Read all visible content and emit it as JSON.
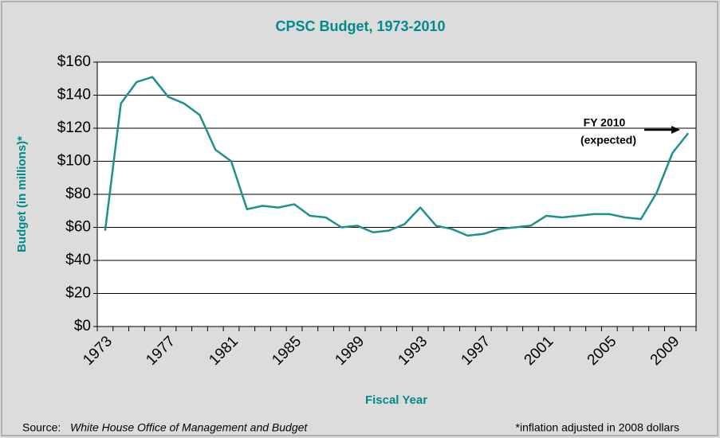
{
  "chart_data": {
    "type": "line",
    "title": "CPSC Budget, 1973-2010",
    "x_label": "Fiscal Year",
    "y_label": "Budget (in millions)*",
    "categories": [
      "1973",
      null,
      null,
      null,
      "1977",
      null,
      null,
      null,
      "1981",
      null,
      null,
      null,
      "1985",
      null,
      null,
      null,
      "1989",
      null,
      null,
      null,
      "1993",
      null,
      null,
      null,
      "1997",
      null,
      null,
      null,
      "2001",
      null,
      null,
      null,
      "2005",
      null,
      null,
      null,
      "2009",
      null
    ],
    "series": [
      {
        "name": "CPSC Budget",
        "color": "#1f8f8f",
        "values": [
          58,
          135,
          148,
          151,
          139,
          135,
          128,
          107,
          100,
          71,
          73,
          72,
          74,
          67,
          66,
          60,
          61,
          57,
          58,
          62,
          72,
          61,
          59,
          55,
          56,
          59,
          60,
          61,
          67,
          66,
          67,
          68,
          68,
          66,
          65,
          81,
          105,
          117
        ]
      }
    ],
    "ylim": [
      0,
      160
    ],
    "yticks": [
      {
        "value": 0,
        "label": "$0"
      },
      {
        "value": 20,
        "label": "$20"
      },
      {
        "value": 40,
        "label": "$40"
      },
      {
        "value": 60,
        "label": "$60"
      },
      {
        "value": 80,
        "label": "$80"
      },
      {
        "value": 100,
        "label": "$100"
      },
      {
        "value": 120,
        "label": "$120"
      },
      {
        "value": 140,
        "label": "$140"
      },
      {
        "value": 160,
        "label": "$160"
      }
    ],
    "grid": true,
    "annotation": [
      "FY 2010",
      "(expected)"
    ],
    "source_prefix": "Source:",
    "source": "White House Office of Management and Budget",
    "note": "*inflation adjusted in 2008 dollars"
  }
}
